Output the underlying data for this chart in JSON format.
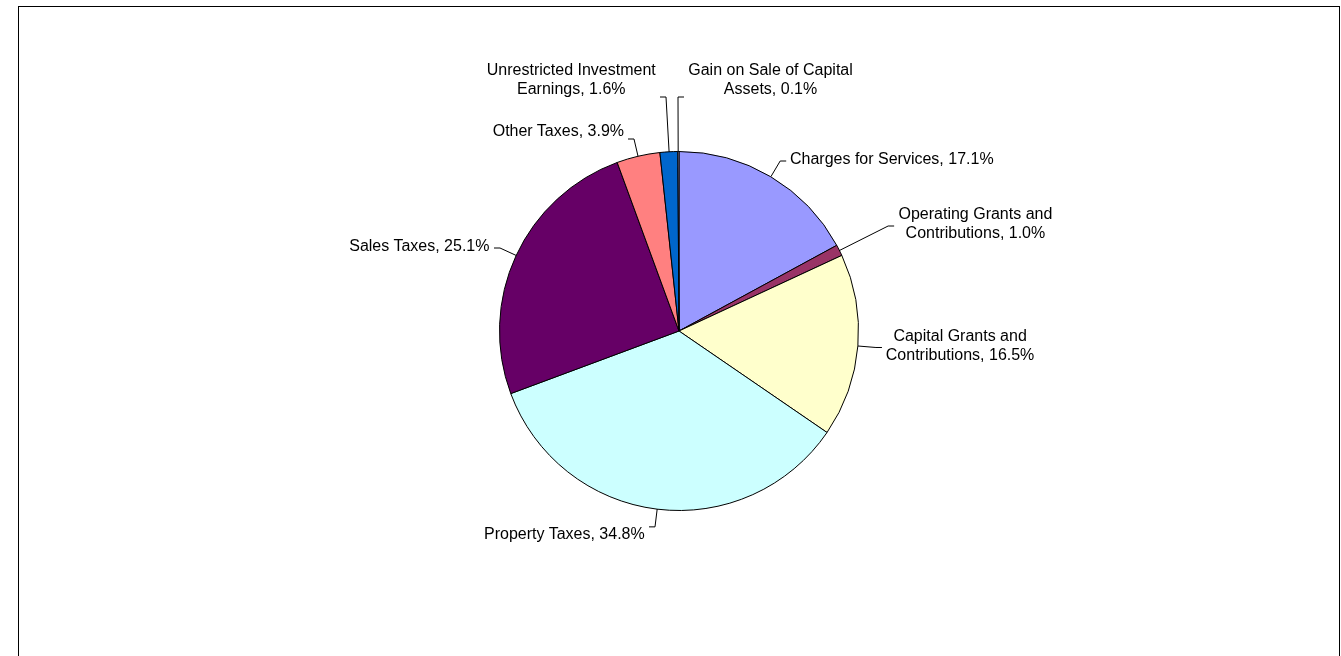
{
  "chart_data": {
    "type": "pie",
    "categories": [
      "Charges for Services",
      "Operating Grants and Contributions",
      "Capital Grants and Contributions",
      "Property Taxes",
      "Sales Taxes",
      "Other Taxes",
      "Unrestricted Investment Earnings",
      "Gain on Sale of Capital Assets"
    ],
    "values": [
      17.1,
      1.0,
      16.5,
      34.8,
      25.1,
      3.9,
      1.6,
      0.1
    ],
    "value_labels": [
      "17.1%",
      "1.0%",
      "16.5%",
      "34.8%",
      "25.1%",
      "3.9%",
      "1.6%",
      "0.1%"
    ],
    "colors": [
      "#9999ff",
      "#993366",
      "#ffffcc",
      "#ccffff",
      "#660066",
      "#ff8080",
      "#0066cc",
      "#ccccff"
    ],
    "legend": false
  }
}
